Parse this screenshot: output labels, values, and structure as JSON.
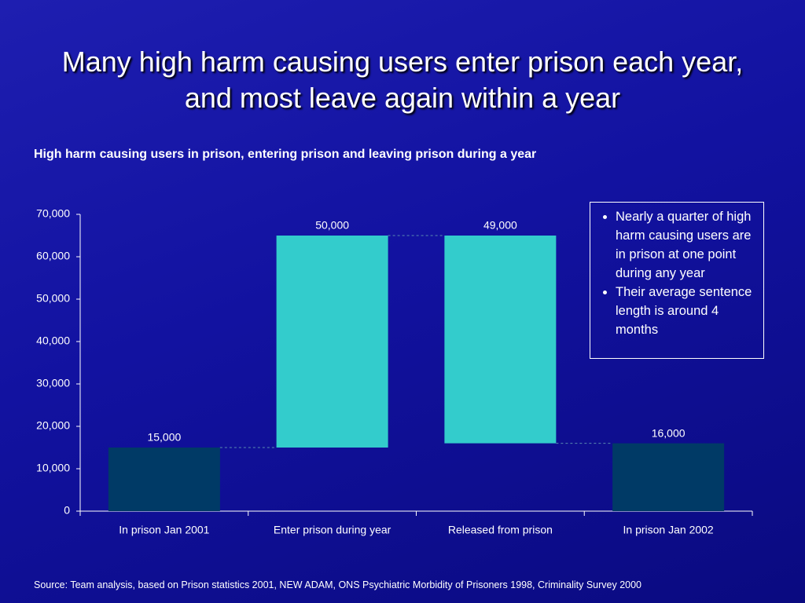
{
  "chart_data": {
    "type": "waterfall",
    "title": "Many high harm causing users enter prison each year, and most leave again within a year",
    "subtitle": "High harm causing users in prison, entering prison and leaving prison during a year",
    "categories": [
      "In prison Jan 2001",
      "Enter prison during year",
      "Released from prison",
      "In prison Jan 2002"
    ],
    "values": [
      15000,
      50000,
      49000,
      16000
    ],
    "value_labels": [
      "15,000",
      "50,000",
      "49,000",
      "16,000"
    ],
    "measures": [
      "total",
      "increase",
      "decrease",
      "total"
    ],
    "colors": {
      "total": "#003a66",
      "increase": "#33cccc",
      "decrease": "#33cccc"
    },
    "ylim": [
      0,
      70000
    ],
    "yticks": [
      0,
      {
        "value": 10000,
        "label": "10,000"
      },
      {
        "value": 20000,
        "label": "20,000"
      },
      {
        "value": 30000,
        "label": "30,000"
      },
      {
        "value": 40000,
        "label": "40,000"
      },
      {
        "value": 50000,
        "label": "50,000"
      },
      {
        "value": 60000,
        "label": "60,000"
      },
      {
        "value": 70000,
        "label": "70,000"
      }
    ],
    "annotation": [
      "Nearly a quarter of high harm causing users are in prison at one point during any year",
      "Their average sentence length is around 4 months"
    ],
    "source": "Source: Team analysis, based on Prison statistics 2001, NEW ADAM, ONS Psychiatric Morbidity of Prisoners 1998, Criminality Survey 2000"
  }
}
